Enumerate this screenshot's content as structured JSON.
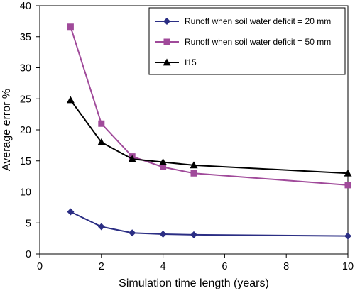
{
  "chart_data": {
    "type": "line",
    "xlabel": "Simulation time length (years)",
    "ylabel": "Average error %",
    "xlim": [
      0,
      10
    ],
    "ylim": [
      0,
      40
    ],
    "xticks": [
      "0",
      "2",
      "4",
      "6",
      "8",
      "10"
    ],
    "yticks": [
      "0",
      "5",
      "10",
      "15",
      "20",
      "25",
      "30",
      "35",
      "40"
    ],
    "grid": false,
    "legend_position": "top-right",
    "series": [
      {
        "name": "Runoff when soil water deficit = 20 mm",
        "color": "#2b2e84",
        "marker": "diamond",
        "x": [
          1,
          2,
          3,
          4,
          5,
          10
        ],
        "y": [
          6.8,
          4.4,
          3.4,
          3.2,
          3.1,
          2.9
        ]
      },
      {
        "name": "Runoff when soil water deficit = 50 mm",
        "color": "#a04a9a",
        "marker": "square",
        "x": [
          1,
          2,
          3,
          4,
          5,
          10
        ],
        "y": [
          36.6,
          21.0,
          15.7,
          14.0,
          13.0,
          11.1
        ]
      },
      {
        "name": "I15",
        "color": "#000000",
        "marker": "triangle",
        "x": [
          1,
          2,
          3,
          4,
          5,
          10
        ],
        "y": [
          24.8,
          18.0,
          15.3,
          14.8,
          14.3,
          13.0
        ]
      }
    ]
  }
}
